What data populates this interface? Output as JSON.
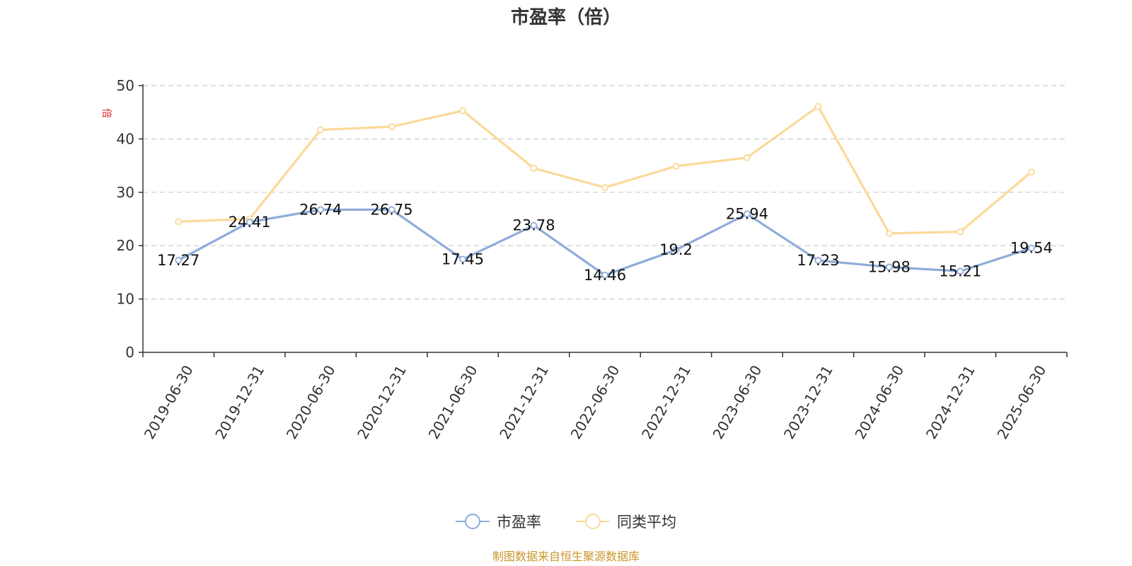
{
  "chart_data": {
    "type": "line",
    "title": "市盈率（倍）",
    "ylabel": "倍",
    "xlabel": "",
    "ylim": [
      0,
      50
    ],
    "yticks": [
      0,
      10,
      20,
      30,
      40,
      50
    ],
    "grid": true,
    "legend_position": "bottom-center",
    "categories": [
      "2019-06-30",
      "2019-12-31",
      "2020-06-30",
      "2020-12-31",
      "2021-06-30",
      "2021-12-31",
      "2022-06-30",
      "2022-12-31",
      "2023-06-30",
      "2023-12-31",
      "2024-06-30",
      "2024-12-31",
      "2025-06-30"
    ],
    "series": [
      {
        "name": "市盈率",
        "color": "#8eacd9",
        "show_labels": true,
        "values": [
          17.27,
          24.41,
          26.74,
          26.75,
          17.45,
          23.78,
          14.46,
          19.2,
          25.94,
          17.23,
          15.98,
          15.21,
          19.54
        ]
      },
      {
        "name": "同类平均",
        "color": "#fbd999",
        "show_labels": false,
        "values": [
          24.5,
          25.0,
          41.7,
          42.3,
          45.3,
          34.5,
          30.9,
          34.9,
          36.5,
          46.1,
          22.3,
          22.6,
          33.8
        ]
      }
    ]
  },
  "source_note": "制图数据来自恒生聚源数据库"
}
